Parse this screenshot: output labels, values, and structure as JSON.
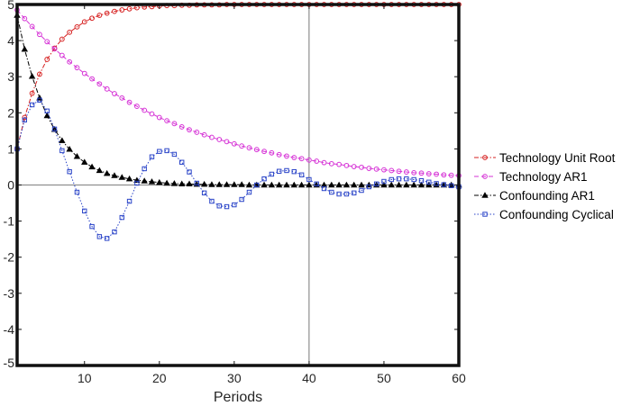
{
  "chart_data": {
    "type": "line",
    "title": "",
    "xlabel": "Periods",
    "ylabel": "",
    "xlim": [
      1,
      60
    ],
    "ylim": [
      -5,
      5
    ],
    "xticks": [
      10,
      20,
      30,
      40,
      50,
      60
    ],
    "yticks": [
      -5,
      -4,
      -3,
      -2,
      -1,
      0,
      1,
      2,
      3,
      4,
      5
    ],
    "xtick_labels": [
      "10",
      "20",
      "30",
      "40",
      "50",
      "60"
    ],
    "ytick_labels": [
      "-5",
      "-4",
      "-3",
      "-2",
      "-1",
      "0",
      "1",
      "2",
      "3",
      "4",
      "5"
    ],
    "grid": false,
    "reference_lines": {
      "y": 0,
      "x": 40
    },
    "legend_position": "outside-right",
    "x": [
      1,
      2,
      3,
      4,
      5,
      6,
      7,
      8,
      9,
      10,
      11,
      12,
      13,
      14,
      15,
      16,
      17,
      18,
      19,
      20,
      21,
      22,
      23,
      24,
      25,
      26,
      27,
      28,
      29,
      30,
      31,
      32,
      33,
      34,
      35,
      36,
      37,
      38,
      39,
      40,
      41,
      42,
      43,
      44,
      45,
      46,
      47,
      48,
      49,
      50,
      51,
      52,
      53,
      54,
      55,
      56,
      57,
      58,
      59,
      60
    ],
    "series": [
      {
        "name": "Technology Unit Root",
        "color": "#d62020",
        "marker": "circle",
        "line_style": "dashdot",
        "values": [
          1.0,
          1.87,
          2.54,
          3.07,
          3.48,
          3.79,
          4.04,
          4.23,
          4.38,
          4.52,
          4.62,
          4.7,
          4.76,
          4.81,
          4.85,
          4.88,
          4.91,
          4.93,
          4.94,
          4.96,
          4.97,
          4.97,
          4.98,
          4.98,
          4.99,
          4.99,
          4.99,
          4.99,
          5.0,
          5.0,
          5.0,
          5.0,
          5.0,
          5.0,
          5.0,
          5.0,
          5.0,
          5.0,
          5.0,
          5.0,
          5.0,
          5.0,
          5.0,
          5.0,
          5.0,
          5.0,
          5.0,
          5.0,
          5.0,
          5.0,
          5.0,
          5.0,
          5.0,
          5.0,
          5.0,
          5.0,
          5.0,
          5.0,
          5.0,
          5.0
        ]
      },
      {
        "name": "Technology AR1",
        "color": "#d633d6",
        "marker": "circle",
        "line_style": "dashed",
        "values": [
          4.85,
          4.61,
          4.39,
          4.17,
          3.97,
          3.77,
          3.59,
          3.41,
          3.25,
          3.09,
          2.94,
          2.8,
          2.66,
          2.53,
          2.41,
          2.29,
          2.18,
          2.07,
          1.97,
          1.87,
          1.78,
          1.7,
          1.61,
          1.53,
          1.46,
          1.39,
          1.32,
          1.26,
          1.2,
          1.14,
          1.08,
          1.03,
          0.98,
          0.93,
          0.89,
          0.84,
          0.8,
          0.76,
          0.73,
          0.69,
          0.66,
          0.62,
          0.59,
          0.57,
          0.54,
          0.51,
          0.49,
          0.46,
          0.44,
          0.42,
          0.4,
          0.38,
          0.36,
          0.34,
          0.33,
          0.31,
          0.3,
          0.28,
          0.27,
          0.26
        ]
      },
      {
        "name": "Confounding AR1",
        "color": "#000000",
        "marker": "triangle",
        "line_style": "dashdot",
        "values": [
          4.7,
          3.76,
          3.01,
          2.41,
          1.92,
          1.54,
          1.23,
          0.99,
          0.79,
          0.63,
          0.5,
          0.4,
          0.32,
          0.26,
          0.21,
          0.17,
          0.13,
          0.11,
          0.09,
          0.07,
          0.05,
          0.04,
          0.03,
          0.03,
          0.02,
          0.02,
          0.01,
          0.01,
          0.01,
          0.01,
          0.01,
          0.0,
          0.0,
          0.0,
          0.0,
          0.0,
          0.0,
          0.0,
          0.0,
          0.0,
          0.0,
          0.0,
          0.0,
          0.0,
          0.0,
          0.0,
          0.0,
          0.0,
          0.0,
          0.0,
          0.0,
          0.0,
          0.0,
          0.0,
          0.0,
          0.0,
          0.0,
          0.0,
          0.0,
          0.0
        ]
      },
      {
        "name": "Confounding Cyclical",
        "color": "#2a44c8",
        "marker": "square",
        "line_style": "dotted",
        "values": [
          1.0,
          1.8,
          2.22,
          2.35,
          2.05,
          1.55,
          0.95,
          0.37,
          -0.2,
          -0.72,
          -1.15,
          -1.43,
          -1.48,
          -1.3,
          -0.9,
          -0.45,
          0.05,
          0.45,
          0.78,
          0.93,
          0.95,
          0.85,
          0.63,
          0.36,
          0.05,
          -0.22,
          -0.45,
          -0.58,
          -0.6,
          -0.55,
          -0.4,
          -0.2,
          0.0,
          0.17,
          0.3,
          0.38,
          0.4,
          0.37,
          0.28,
          0.15,
          0.03,
          -0.1,
          -0.2,
          -0.25,
          -0.25,
          -0.22,
          -0.15,
          -0.05,
          0.03,
          0.1,
          0.15,
          0.17,
          0.17,
          0.15,
          0.12,
          0.08,
          0.04,
          0.01,
          -0.02,
          -0.05
        ]
      }
    ]
  }
}
